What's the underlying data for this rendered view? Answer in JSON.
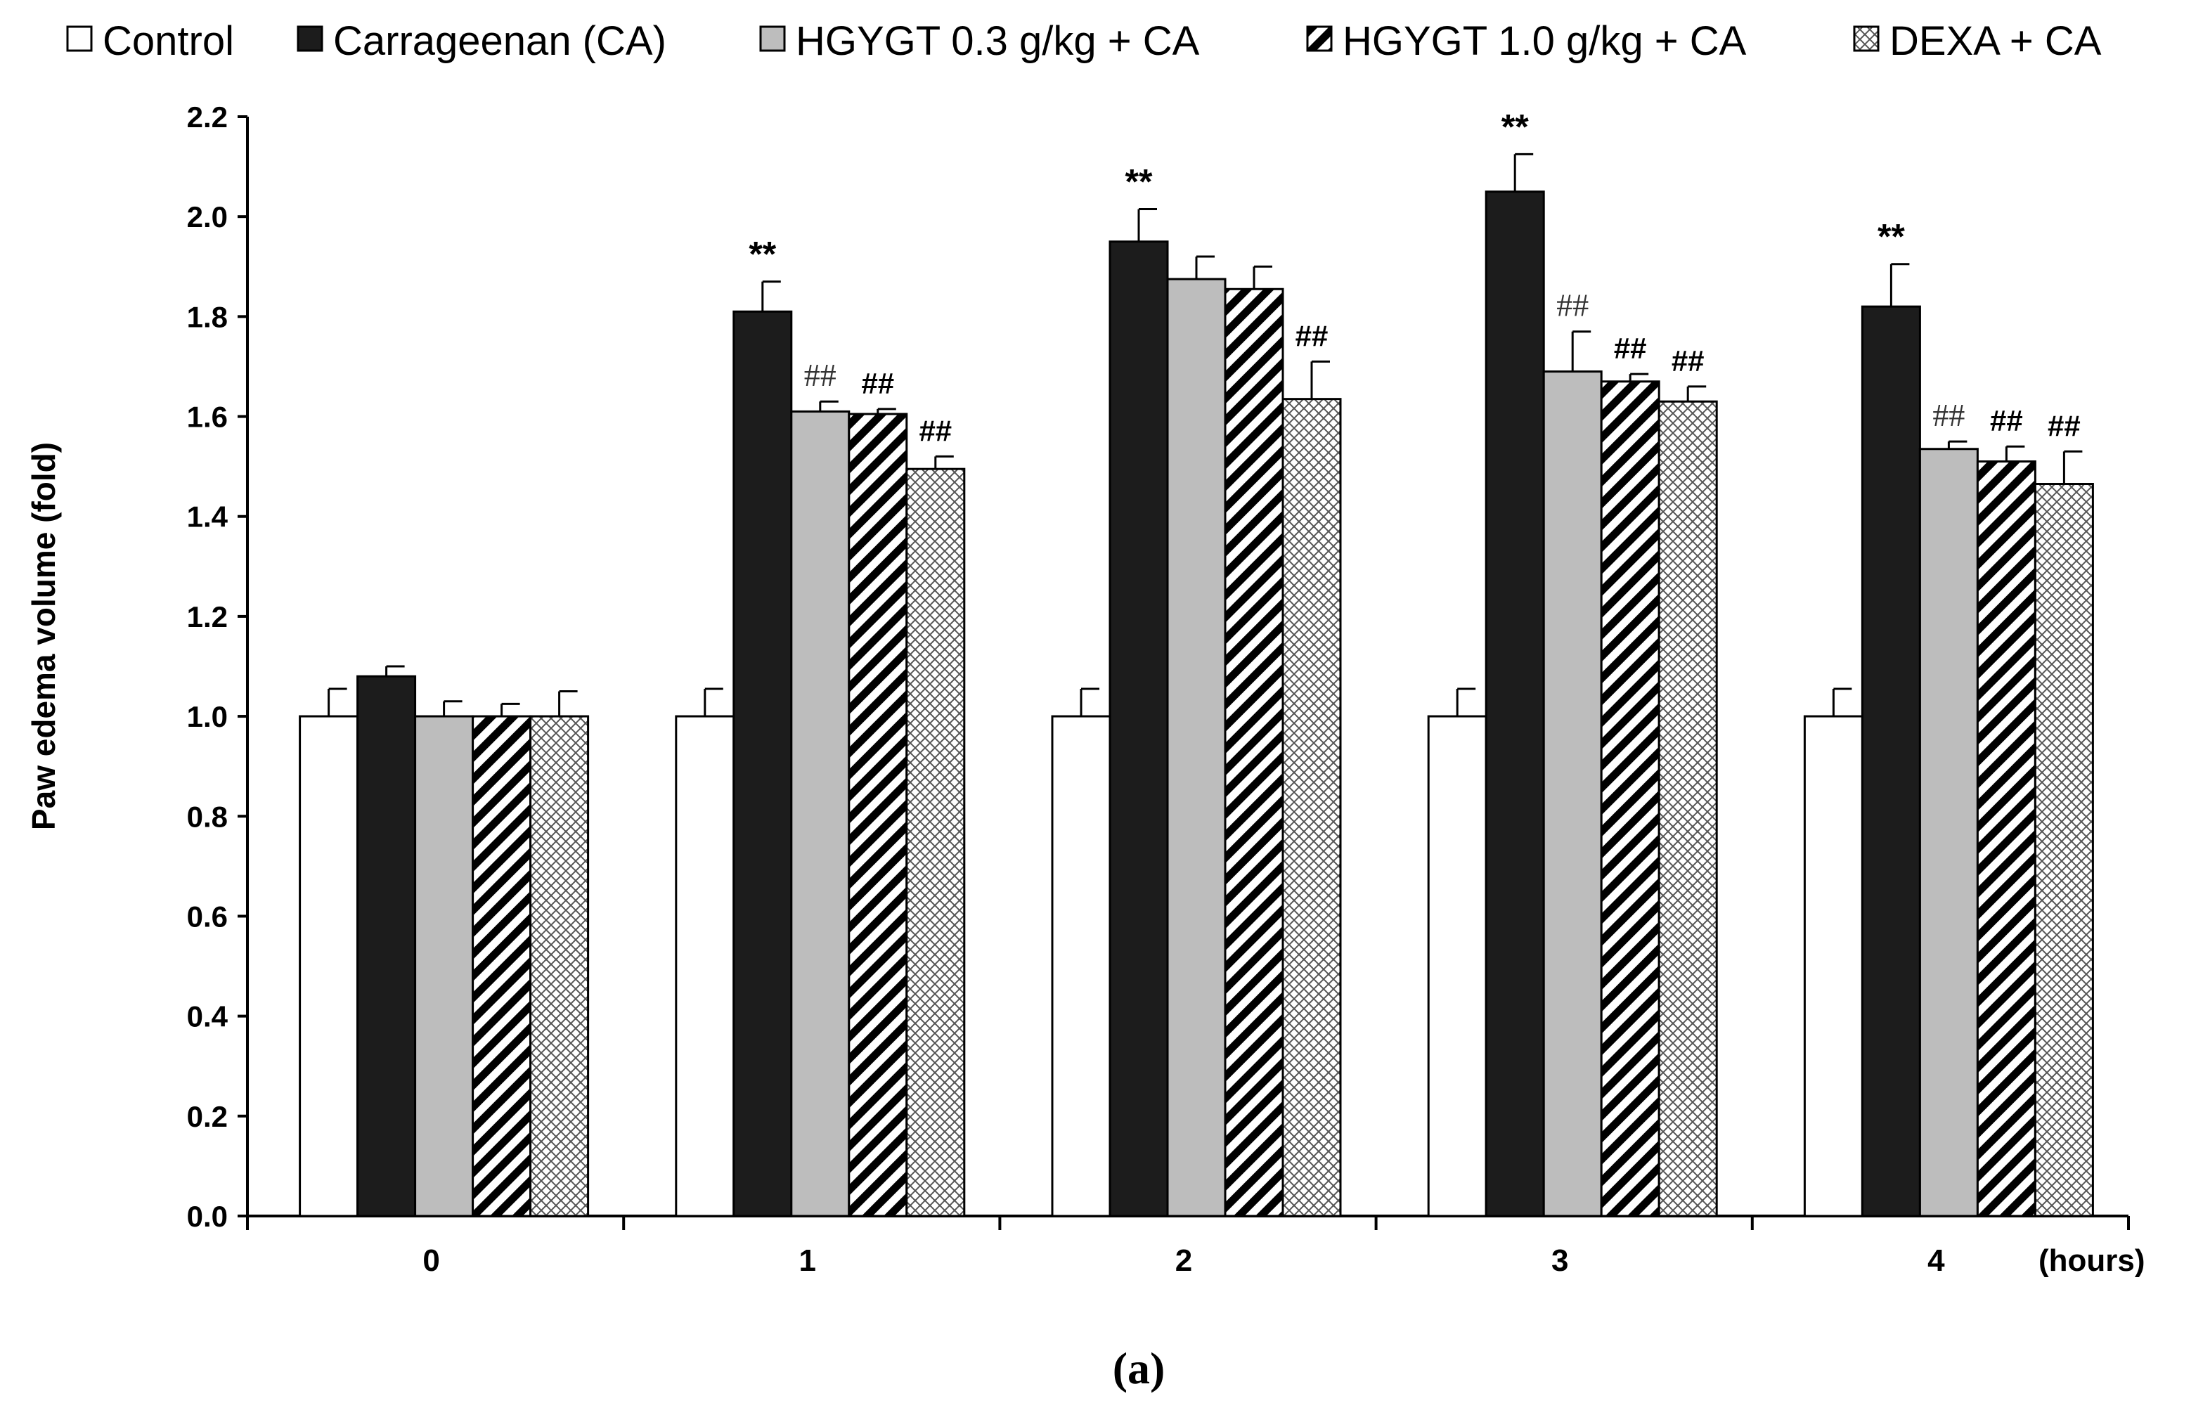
{
  "chart_data": {
    "type": "bar",
    "title": "",
    "caption": "(a)",
    "ylabel": "Paw edema volume (fold)",
    "xlabel": "",
    "x_unit_label": "(hours)",
    "ylim": [
      0,
      2.2
    ],
    "yticks": [
      "0.0",
      "0.2",
      "0.4",
      "0.6",
      "0.8",
      "1.0",
      "1.2",
      "1.4",
      "1.6",
      "1.8",
      "2.0",
      "2.2"
    ],
    "categories": [
      "0",
      "1",
      "2",
      "3",
      "4"
    ],
    "legend_position": "top",
    "series": [
      {
        "name": "Control",
        "pattern": "white",
        "values": [
          1.0,
          1.0,
          1.0,
          1.0,
          1.0
        ],
        "errors": [
          0.055,
          0.055,
          0.055,
          0.055,
          0.055
        ],
        "annotations": [
          "",
          "",
          "",
          "",
          ""
        ]
      },
      {
        "name": "Carrageenan (CA)",
        "pattern": "black",
        "values": [
          1.08,
          1.81,
          1.95,
          2.05,
          1.82
        ],
        "errors": [
          0.02,
          0.06,
          0.065,
          0.075,
          0.085
        ],
        "annotations": [
          "",
          "**",
          "**",
          "**",
          "**"
        ]
      },
      {
        "name": "HGYGT 0.3 g/kg + CA",
        "pattern": "gray",
        "values": [
          1.0,
          1.61,
          1.875,
          1.69,
          1.535
        ],
        "errors": [
          0.03,
          0.02,
          0.045,
          0.08,
          0.015
        ],
        "annotations": [
          "",
          "##",
          "",
          "##",
          "##"
        ]
      },
      {
        "name": "HGYGT 1.0 g/kg + CA",
        "pattern": "stripes",
        "values": [
          1.0,
          1.605,
          1.855,
          1.67,
          1.51
        ],
        "errors": [
          0.025,
          0.01,
          0.045,
          0.015,
          0.03
        ],
        "annotations": [
          "",
          "##",
          "",
          "##",
          "##"
        ]
      },
      {
        "name": "DEXA + CA",
        "pattern": "crosshatch",
        "values": [
          1.0,
          1.495,
          1.635,
          1.63,
          1.465
        ],
        "errors": [
          0.05,
          0.025,
          0.075,
          0.03,
          0.065
        ],
        "annotations": [
          "",
          "##",
          "##",
          "##",
          "##"
        ]
      }
    ]
  },
  "colors": {
    "black_bar": "#1c1c1c",
    "gray_bar": "#bdbdbd",
    "outline": "#000000"
  }
}
